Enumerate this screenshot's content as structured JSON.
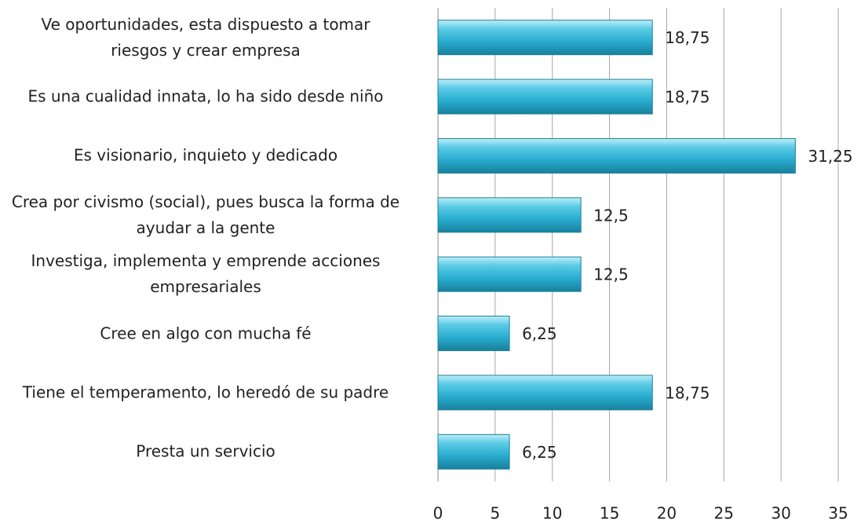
{
  "chart_data": {
    "type": "barh",
    "categories": [
      "Ve oportunidades, esta dispuesto a tomar\nriesgos y crear empresa",
      "Es una cualidad innata, lo ha sido desde niño",
      "Es visionario, inquieto y dedicado",
      "Crea por civismo (social), pues busca la forma de\nayudar a la gente",
      "Investiga, implementa y emprende acciones\nempresariales",
      "Cree en algo con mucha fé",
      "Tiene el temperamento, lo heredó de su padre",
      "Presta un servicio"
    ],
    "values": [
      18.75,
      18.75,
      31.25,
      12.5,
      12.5,
      6.25,
      18.75,
      6.25
    ],
    "value_labels": [
      "18,75",
      "18,75",
      "31,25",
      "12,5",
      "12,5",
      "6,25",
      "18,75",
      "6,25"
    ],
    "color": "#31b6d8",
    "xlim": [
      0,
      35
    ],
    "xticks": [
      0,
      5,
      10,
      15,
      20,
      25,
      30,
      35
    ],
    "grid": true
  }
}
